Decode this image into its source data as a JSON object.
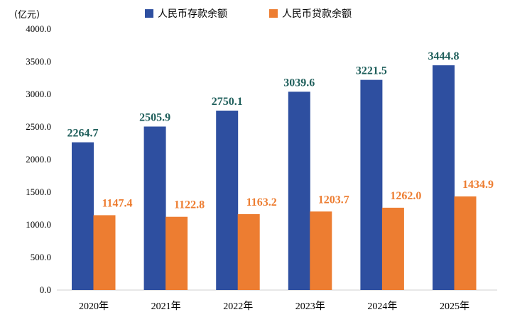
{
  "chart_data": {
    "type": "bar",
    "unit_label": "（亿元）",
    "categories": [
      "2020年",
      "2021年",
      "2022年",
      "2023年",
      "2024年",
      "2025年"
    ],
    "series": [
      {
        "name": "人民币存款余额",
        "color": "#2E4FA0",
        "label_color": "#1F5F5B",
        "values": [
          2264.7,
          2505.9,
          2750.1,
          3039.6,
          3221.5,
          3444.8
        ],
        "labels": [
          "2264.7",
          "2505.9",
          "2750.1",
          "3039.6",
          "3221.5",
          "3444.8"
        ]
      },
      {
        "name": "人民币贷款余额",
        "color": "#ED7D31",
        "label_color": "#ED7D31",
        "values": [
          1147.4,
          1122.8,
          1163.2,
          1203.7,
          1262.0,
          1434.9
        ],
        "labels": [
          "1147.4",
          "1122.8",
          "1163.2",
          "1203.7",
          "1262.0",
          "1434.9"
        ]
      }
    ],
    "ylim": [
      0,
      4000
    ],
    "yticks": [
      "0.0",
      "500.0",
      "1000.0",
      "1500.0",
      "2000.0",
      "2500.0",
      "3000.0",
      "3500.0",
      "4000.0"
    ],
    "grid": false,
    "legend_position": "top-center"
  }
}
